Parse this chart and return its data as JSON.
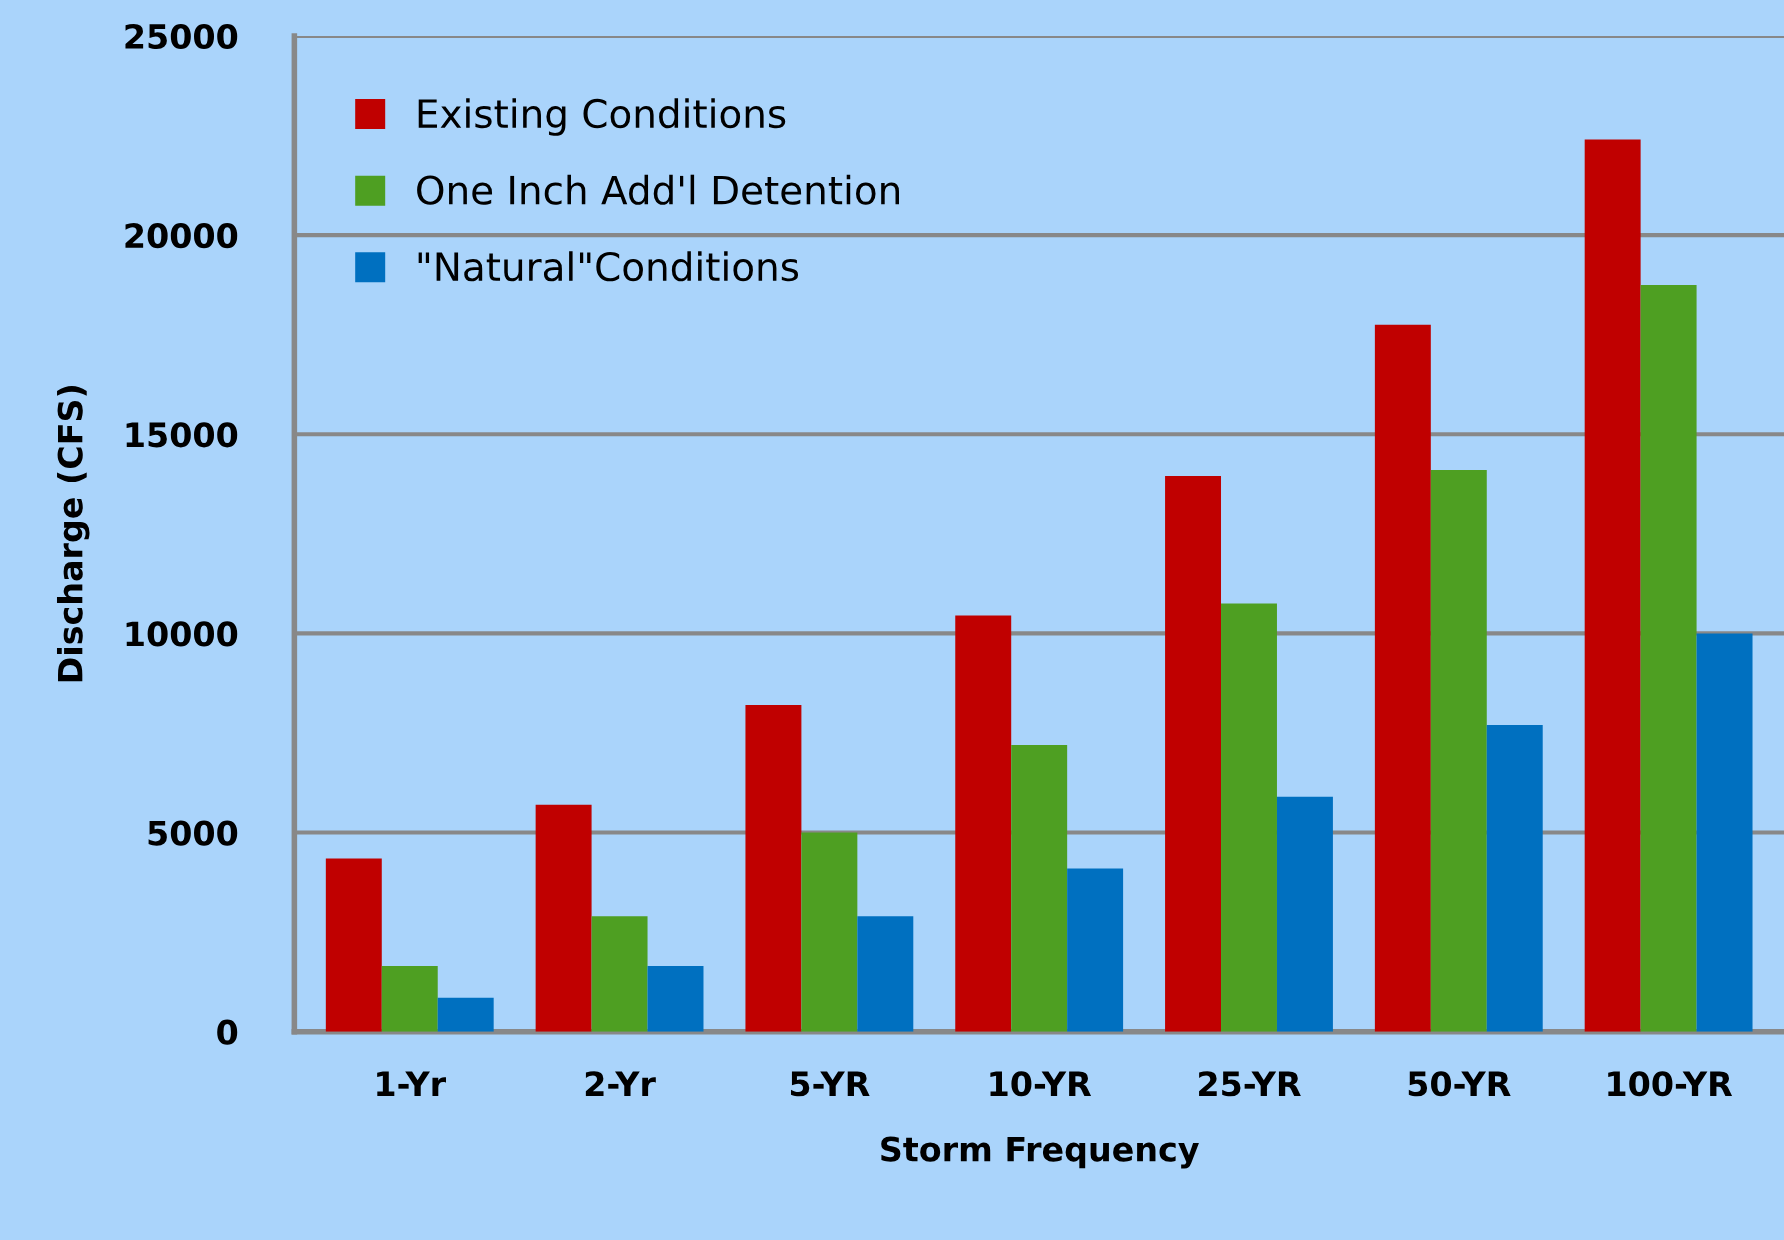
{
  "chart_data": {
    "type": "bar",
    "xlabel": "Storm Frequency",
    "ylabel": "Discharge (CFS)",
    "categories": [
      "1-Yr",
      "2-Yr",
      "5-YR",
      "10-YR",
      "25-YR",
      "50-YR",
      "100-YR"
    ],
    "series": [
      {
        "name": "Existing Conditions",
        "color": "#c00000",
        "values": [
          4350,
          5700,
          8200,
          10450,
          13950,
          17750,
          22400
        ]
      },
      {
        "name": "One Inch Add'l Detention",
        "color": "#4e9f22",
        "values": [
          1650,
          2900,
          5000,
          7200,
          10750,
          14100,
          18750
        ]
      },
      {
        "name": "\"Natural\"Conditions",
        "color": "#0070c0",
        "values": [
          850,
          1650,
          2900,
          4100,
          5900,
          7700,
          10000
        ]
      }
    ],
    "ylim": [
      0,
      25000
    ],
    "yticks": [
      0,
      5000,
      10000,
      15000,
      20000,
      25000
    ],
    "grid": "y",
    "legend": "top left"
  }
}
